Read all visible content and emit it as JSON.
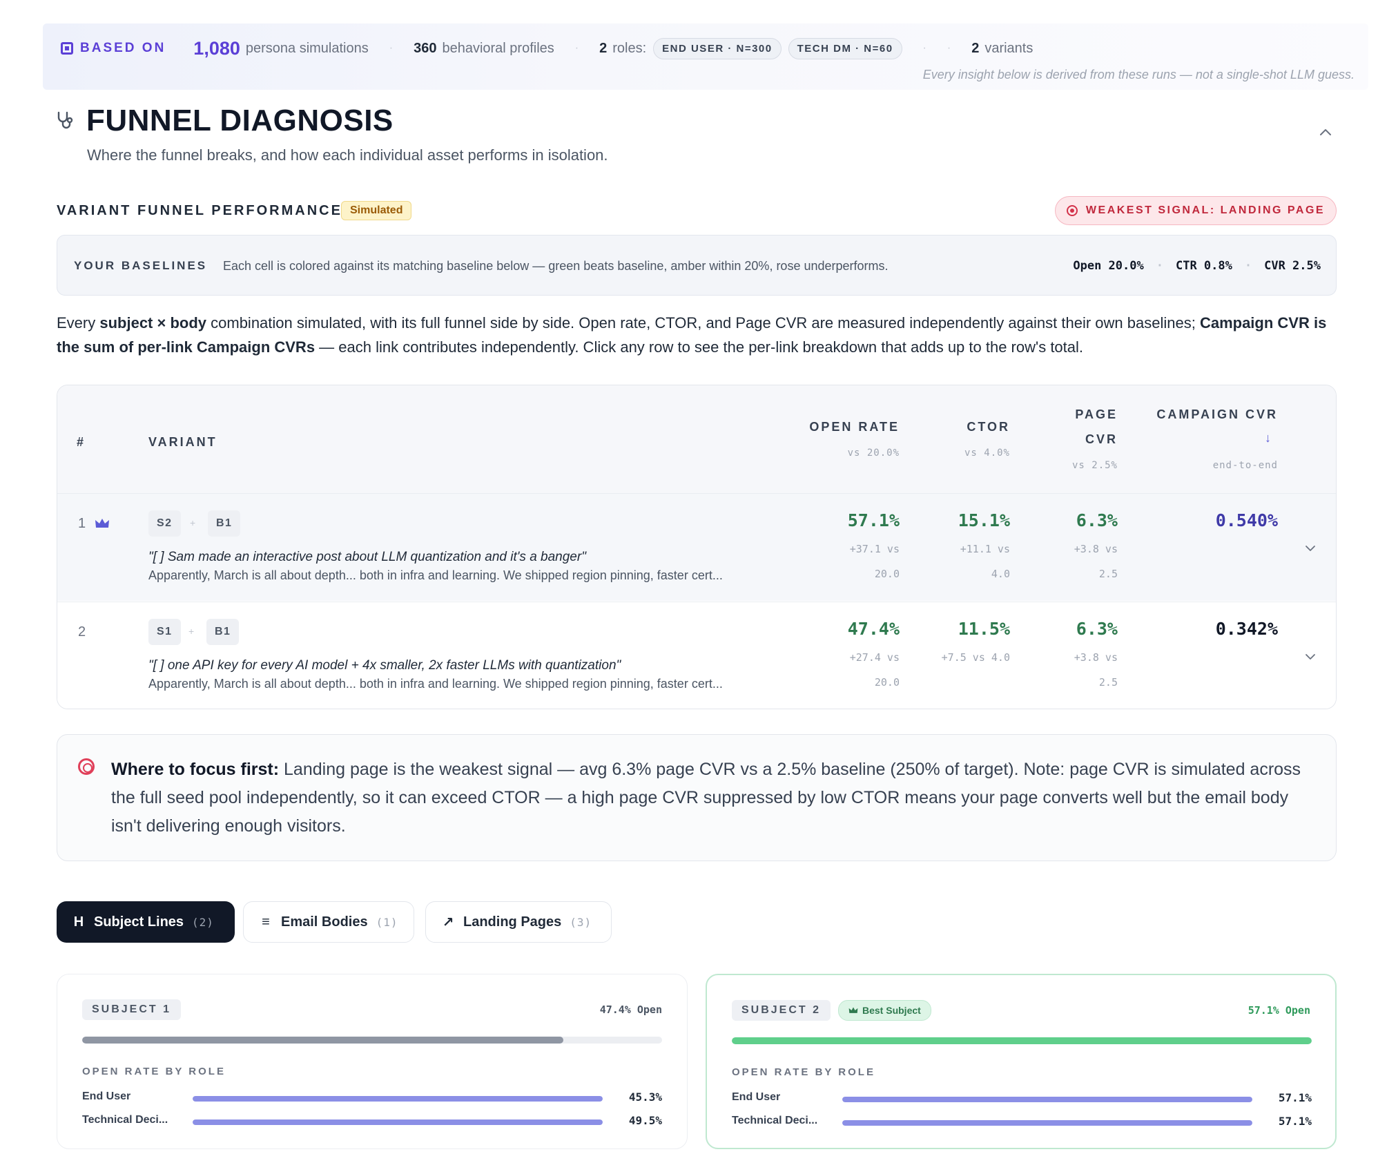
{
  "banner": {
    "based_on": "BASED ON",
    "persona_count": "1,080",
    "persona_label": "persona simulations",
    "profile_count": "360",
    "profile_label": "behavioral profiles",
    "roles_count": "2",
    "roles_label": "roles:",
    "roles": [
      "END USER · N=300",
      "TECH DM · N=60"
    ],
    "variants_count": "2",
    "variants_label": "variants",
    "note": "Every insight below is derived from these runs — not a single-shot LLM guess."
  },
  "section": {
    "title": "FUNNEL DIAGNOSIS",
    "subtitle": "Where the funnel breaks, and how each individual asset performs in isolation."
  },
  "variant_funnel": {
    "title": "VARIANT FUNNEL PERFORMANCE",
    "badge": "Simulated",
    "weakest": "WEAKEST SIGNAL: LANDING PAGE"
  },
  "baselines": {
    "label": "YOUR BASELINES",
    "desc": "Each cell is colored against its matching baseline below — green beats baseline, amber within 20%, rose underperforms.",
    "open": "Open 20.0%",
    "ctr": "CTR 0.8%",
    "cvr": "CVR 2.5%"
  },
  "description": {
    "p1": "Every ",
    "b1": "subject × body",
    "p2": " combination simulated, with its full funnel side by side. Open rate, CTOR, and Page CVR are measured independently against their own baselines; ",
    "b2": "Campaign CVR is the sum of per-link Campaign CVRs",
    "p3": " — each link contributes independently. Click any row to see the per-link breakdown that adds up to the row's total."
  },
  "table": {
    "headers": {
      "num": "#",
      "variant": "VARIANT",
      "open": "OPEN RATE",
      "open_sub": "vs 20.0%",
      "ctor": "CTOR",
      "ctor_sub": "vs 4.0%",
      "page": "PAGE",
      "page2": "CVR",
      "page_sub": "vs 2.5%",
      "campaign": "CAMPAIGN CVR",
      "campaign_arrow": "↓",
      "campaign_sub": "end-to-end"
    },
    "rows": [
      {
        "num": "1",
        "subject_tag": "S2",
        "body_tag": "B1",
        "plus": "+",
        "subject": "\"[                    ] Sam made an interactive post about LLM quantization and it's a banger\"",
        "body": "Apparently, March is all about depth... both in infra and learning. We shipped region pinning, faster cert...",
        "open": "57.1%",
        "open_d1": "+37.1 vs",
        "open_d2": "20.0",
        "ctor": "15.1%",
        "ctor_d1": "+11.1 vs",
        "ctor_d2": "4.0",
        "page": "6.3%",
        "page_d1": "+3.8 vs",
        "page_d2": "2.5",
        "campaign": "0.540%"
      },
      {
        "num": "2",
        "subject_tag": "S1",
        "body_tag": "B1",
        "plus": "+",
        "subject": "\"[                ] one API key for every AI model + 4x smaller, 2x faster LLMs with quantization\"",
        "body": "Apparently, March is all about depth... both in infra and learning. We shipped region pinning, faster cert...",
        "open": "47.4%",
        "open_d1": "+27.4 vs",
        "open_d2": "20.0",
        "ctor": "11.5%",
        "ctor_d1": "+7.5 vs 4.0",
        "page": "6.3%",
        "page_d1": "+3.8 vs",
        "page_d2": "2.5",
        "campaign": "0.342%"
      }
    ]
  },
  "focus": {
    "lead": "Where to focus first:",
    "text": " Landing page is the weakest signal — avg 6.3% page CVR vs a 2.5% baseline (250% of target). Note: page CVR is simulated across the full seed pool independently, so it can exceed CTOR — a high page CVR suppressed by low CTOR means your page converts well but the email body isn't delivering enough visitors."
  },
  "tabs": [
    {
      "icon": "H",
      "label": "Subject Lines",
      "count": "(2)"
    },
    {
      "icon": "≡",
      "label": "Email Bodies",
      "count": "(1)"
    },
    {
      "icon": "↗",
      "label": "Landing Pages",
      "count": "(3)"
    }
  ],
  "subjects": [
    {
      "tag": "SUBJECT 1",
      "open": "47.4% Open",
      "open_rate": 47.4,
      "role_heading": "OPEN RATE BY ROLE",
      "roles": [
        {
          "name": "End User",
          "value": "45.3%",
          "pct": 45.3
        },
        {
          "name": "Technical Deci...",
          "value": "49.5%",
          "pct": 49.5
        }
      ]
    },
    {
      "tag": "SUBJECT 2",
      "badge": "Best Subject",
      "open": "57.1% Open",
      "open_rate": 57.1,
      "role_heading": "OPEN RATE BY ROLE",
      "roles": [
        {
          "name": "End User",
          "value": "57.1%",
          "pct": 57.1
        },
        {
          "name": "Technical Deci...",
          "value": "57.1%",
          "pct": 57.1
        }
      ]
    }
  ],
  "colors": {
    "accent": "#5b3fd6",
    "green": "#2f7a4f",
    "bar_grey": "#8f96a3",
    "bar_green": "#5fcf8b",
    "role_bar": "#8b8fe6"
  }
}
